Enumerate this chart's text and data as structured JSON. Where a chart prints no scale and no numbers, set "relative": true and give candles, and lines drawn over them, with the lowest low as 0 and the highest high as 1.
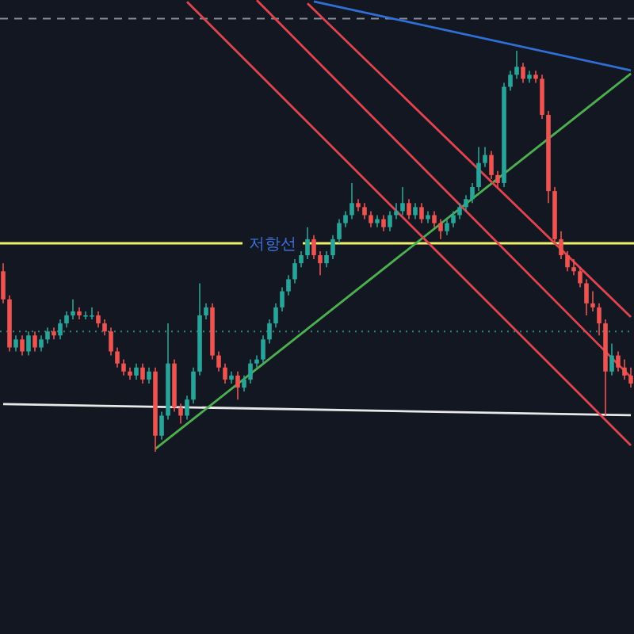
{
  "chart_data": {
    "type": "candlestick",
    "relative": true,
    "categories": [
      null,
      null,
      null,
      null,
      null,
      null,
      null,
      null,
      null,
      null,
      null,
      null,
      null,
      null,
      null,
      null,
      null,
      null,
      null,
      null,
      null,
      null,
      null,
      null,
      null,
      null,
      null,
      null,
      null,
      null,
      null,
      null,
      null,
      null,
      null,
      null,
      null,
      null,
      null,
      null,
      null,
      null,
      null,
      null,
      null,
      null,
      null,
      null,
      null,
      null,
      null,
      null,
      null,
      null,
      null,
      null,
      null,
      null,
      null,
      null,
      null,
      null,
      null,
      null,
      null,
      null,
      null,
      null,
      null,
      null,
      null,
      null,
      null,
      null,
      null,
      null,
      null,
      null,
      null,
      null,
      null,
      null,
      null,
      null,
      null,
      null,
      null,
      null,
      null,
      null,
      null,
      null,
      null,
      null,
      null,
      null,
      null,
      null,
      null,
      null
    ],
    "ohlc": [
      [
        0.45,
        0.47,
        0.37,
        0.38
      ],
      [
        0.38,
        0.39,
        0.25,
        0.26
      ],
      [
        0.26,
        0.29,
        0.25,
        0.28
      ],
      [
        0.28,
        0.29,
        0.24,
        0.25
      ],
      [
        0.25,
        0.3,
        0.24,
        0.29
      ],
      [
        0.29,
        0.3,
        0.25,
        0.26
      ],
      [
        0.26,
        0.29,
        0.25,
        0.28
      ],
      [
        0.28,
        0.31,
        0.27,
        0.3
      ],
      [
        0.3,
        0.31,
        0.28,
        0.29
      ],
      [
        0.29,
        0.33,
        0.28,
        0.32
      ],
      [
        0.32,
        0.35,
        0.31,
        0.34
      ],
      [
        0.34,
        0.38,
        0.33,
        0.35
      ],
      [
        0.35,
        0.36,
        0.33,
        0.34
      ],
      [
        0.34,
        0.35,
        0.33,
        0.34
      ],
      [
        0.34,
        0.36,
        0.33,
        0.34
      ],
      [
        0.34,
        0.35,
        0.31,
        0.32
      ],
      [
        0.32,
        0.33,
        0.29,
        0.3
      ],
      [
        0.3,
        0.31,
        0.24,
        0.25
      ],
      [
        0.25,
        0.26,
        0.21,
        0.22
      ],
      [
        0.22,
        0.23,
        0.19,
        0.2
      ],
      [
        0.2,
        0.21,
        0.18,
        0.19
      ],
      [
        0.19,
        0.22,
        0.18,
        0.21
      ],
      [
        0.21,
        0.22,
        0.17,
        0.18
      ],
      [
        0.18,
        0.21,
        0.17,
        0.2
      ],
      [
        0.2,
        0.21,
        0.0,
        0.04
      ],
      [
        0.04,
        0.1,
        0.03,
        0.09
      ],
      [
        0.09,
        0.32,
        0.08,
        0.22
      ],
      [
        0.22,
        0.23,
        0.1,
        0.11
      ],
      [
        0.11,
        0.12,
        0.07,
        0.09
      ],
      [
        0.09,
        0.14,
        0.08,
        0.13
      ],
      [
        0.13,
        0.21,
        0.12,
        0.2
      ],
      [
        0.2,
        0.42,
        0.19,
        0.34
      ],
      [
        0.34,
        0.37,
        0.33,
        0.36
      ],
      [
        0.36,
        0.37,
        0.23,
        0.24
      ],
      [
        0.24,
        0.25,
        0.2,
        0.21
      ],
      [
        0.21,
        0.22,
        0.17,
        0.18
      ],
      [
        0.18,
        0.2,
        0.17,
        0.19
      ],
      [
        0.19,
        0.2,
        0.13,
        0.16
      ],
      [
        0.16,
        0.19,
        0.15,
        0.18
      ],
      [
        0.18,
        0.23,
        0.17,
        0.22
      ],
      [
        0.22,
        0.24,
        0.21,
        0.23
      ],
      [
        0.23,
        0.29,
        0.22,
        0.28
      ],
      [
        0.28,
        0.33,
        0.27,
        0.32
      ],
      [
        0.32,
        0.37,
        0.31,
        0.36
      ],
      [
        0.36,
        0.41,
        0.35,
        0.4
      ],
      [
        0.4,
        0.44,
        0.39,
        0.43
      ],
      [
        0.43,
        0.48,
        0.42,
        0.47
      ],
      [
        0.47,
        0.5,
        0.46,
        0.49
      ],
      [
        0.49,
        0.56,
        0.48,
        0.53
      ],
      [
        0.53,
        0.54,
        0.48,
        0.49
      ],
      [
        0.49,
        0.5,
        0.44,
        0.47
      ],
      [
        0.47,
        0.5,
        0.46,
        0.49
      ],
      [
        0.49,
        0.54,
        0.48,
        0.53
      ],
      [
        0.53,
        0.58,
        0.52,
        0.57
      ],
      [
        0.57,
        0.6,
        0.56,
        0.59
      ],
      [
        0.59,
        0.67,
        0.58,
        0.62
      ],
      [
        0.62,
        0.63,
        0.6,
        0.61
      ],
      [
        0.61,
        0.62,
        0.58,
        0.59
      ],
      [
        0.59,
        0.6,
        0.56,
        0.57
      ],
      [
        0.57,
        0.59,
        0.56,
        0.58
      ],
      [
        0.58,
        0.59,
        0.55,
        0.56
      ],
      [
        0.56,
        0.6,
        0.55,
        0.59
      ],
      [
        0.59,
        0.62,
        0.58,
        0.6
      ],
      [
        0.6,
        0.66,
        0.59,
        0.62
      ],
      [
        0.62,
        0.63,
        0.58,
        0.59
      ],
      [
        0.59,
        0.62,
        0.58,
        0.61
      ],
      [
        0.61,
        0.62,
        0.57,
        0.58
      ],
      [
        0.58,
        0.6,
        0.57,
        0.59
      ],
      [
        0.59,
        0.6,
        0.56,
        0.57
      ],
      [
        0.57,
        0.58,
        0.53,
        0.55
      ],
      [
        0.55,
        0.58,
        0.54,
        0.57
      ],
      [
        0.57,
        0.6,
        0.56,
        0.59
      ],
      [
        0.59,
        0.62,
        0.58,
        0.61
      ],
      [
        0.61,
        0.64,
        0.6,
        0.63
      ],
      [
        0.63,
        0.67,
        0.62,
        0.66
      ],
      [
        0.66,
        0.76,
        0.65,
        0.72
      ],
      [
        0.72,
        0.76,
        0.71,
        0.74
      ],
      [
        0.74,
        0.75,
        0.68,
        0.69
      ],
      [
        0.69,
        0.7,
        0.66,
        0.67
      ],
      [
        0.67,
        0.92,
        0.66,
        0.91
      ],
      [
        0.91,
        0.95,
        0.9,
        0.94
      ],
      [
        0.94,
        1.0,
        0.93,
        0.96
      ],
      [
        0.96,
        0.97,
        0.92,
        0.93
      ],
      [
        0.93,
        0.95,
        0.92,
        0.94
      ],
      [
        0.94,
        0.95,
        0.92,
        0.93
      ],
      [
        0.93,
        0.94,
        0.83,
        0.84
      ],
      [
        0.84,
        0.85,
        0.62,
        0.65
      ],
      [
        0.65,
        0.66,
        0.52,
        0.53
      ],
      [
        0.53,
        0.55,
        0.48,
        0.49
      ],
      [
        0.49,
        0.5,
        0.45,
        0.46
      ],
      [
        0.46,
        0.48,
        0.44,
        0.45
      ],
      [
        0.45,
        0.46,
        0.41,
        0.42
      ],
      [
        0.42,
        0.43,
        0.34,
        0.37
      ],
      [
        0.37,
        0.4,
        0.35,
        0.36
      ],
      [
        0.36,
        0.37,
        0.29,
        0.32
      ],
      [
        0.32,
        0.33,
        0.09,
        0.2
      ],
      [
        0.2,
        0.27,
        0.19,
        0.24
      ],
      [
        0.24,
        0.25,
        0.2,
        0.21
      ],
      [
        0.21,
        0.23,
        0.18,
        0.19
      ],
      [
        0.19,
        0.21,
        0.16,
        0.17
      ]
    ],
    "series": [
      {
        "type": "line",
        "color": "#e8e8e8",
        "values": [
          0.119,
          null,
          null,
          null,
          null,
          null,
          null,
          null,
          null,
          null,
          null,
          null,
          null,
          null,
          null,
          null,
          null,
          null,
          null,
          null,
          null,
          null,
          null,
          null,
          null,
          null,
          null,
          null,
          null,
          null,
          null,
          null,
          null,
          null,
          null,
          null,
          null,
          null,
          null,
          null,
          null,
          null,
          null,
          null,
          null,
          null,
          null,
          null,
          null,
          null,
          null,
          null,
          null,
          null,
          null,
          null,
          null,
          null,
          null,
          null,
          null,
          null,
          null,
          null,
          null,
          null,
          null,
          null,
          null,
          null,
          null,
          null,
          null,
          null,
          null,
          null,
          null,
          null,
          null,
          null,
          null,
          null,
          null,
          null,
          null,
          null,
          null,
          null,
          null,
          null,
          null,
          null,
          null,
          null,
          null,
          null,
          null,
          null,
          null,
          0.091
        ]
      },
      {
        "type": "line",
        "color": "#4caf50",
        "values": [
          null,
          null,
          null,
          null,
          null,
          null,
          null,
          null,
          null,
          null,
          null,
          null,
          null,
          null,
          null,
          null,
          null,
          null,
          null,
          null,
          null,
          null,
          null,
          null,
          0.007,
          null,
          null,
          null,
          null,
          null,
          null,
          null,
          null,
          null,
          null,
          null,
          null,
          null,
          null,
          null,
          null,
          null,
          null,
          null,
          null,
          null,
          null,
          null,
          null,
          null,
          null,
          null,
          null,
          null,
          null,
          null,
          null,
          null,
          null,
          null,
          null,
          null,
          null,
          null,
          null,
          null,
          null,
          null,
          null,
          null,
          null,
          null,
          null,
          null,
          null,
          null,
          null,
          null,
          null,
          null,
          null,
          null,
          null,
          null,
          null,
          null,
          null,
          null,
          null,
          null,
          null,
          null,
          null,
          null,
          null,
          null,
          null,
          null,
          null,
          0.943
        ]
      },
      {
        "type": "line",
        "color": "#2f6fd6",
        "values": [
          null,
          null,
          null,
          null,
          null,
          null,
          null,
          null,
          null,
          null,
          null,
          null,
          null,
          null,
          null,
          null,
          null,
          null,
          null,
          null,
          null,
          null,
          null,
          null,
          null,
          null,
          null,
          null,
          null,
          null,
          null,
          null,
          null,
          null,
          null,
          null,
          null,
          null,
          null,
          null,
          null,
          null,
          null,
          null,
          null,
          null,
          null,
          null,
          null,
          1.123,
          null,
          null,
          null,
          null,
          null,
          null,
          null,
          null,
          null,
          null,
          null,
          null,
          null,
          null,
          null,
          null,
          null,
          null,
          null,
          null,
          null,
          null,
          null,
          null,
          null,
          null,
          null,
          null,
          null,
          null,
          null,
          null,
          null,
          null,
          null,
          null,
          null,
          null,
          null,
          null,
          null,
          null,
          null,
          null,
          null,
          null,
          null,
          null,
          null,
          0.951
        ]
      },
      {
        "type": "line",
        "color": "#e0454f",
        "values": [
          null,
          null,
          null,
          null,
          null,
          null,
          null,
          null,
          null,
          null,
          null,
          null,
          null,
          null,
          null,
          null,
          null,
          null,
          null,
          null,
          null,
          null,
          null,
          null,
          null,
          null,
          null,
          null,
          null,
          1.122,
          null,
          null,
          null,
          null,
          null,
          null,
          null,
          null,
          null,
          null,
          null,
          null,
          null,
          null,
          null,
          null,
          null,
          null,
          null,
          null,
          null,
          null,
          null,
          null,
          null,
          null,
          null,
          null,
          null,
          null,
          null,
          null,
          null,
          null,
          null,
          null,
          null,
          null,
          null,
          null,
          null,
          null,
          null,
          null,
          null,
          null,
          null,
          null,
          null,
          null,
          null,
          null,
          null,
          null,
          null,
          null,
          null,
          null,
          null,
          null,
          null,
          null,
          null,
          null,
          null,
          null,
          null,
          null,
          null,
          0.016
        ]
      },
      {
        "type": "line",
        "color": "#e0454f",
        "values": [
          null,
          null,
          null,
          null,
          null,
          null,
          null,
          null,
          null,
          null,
          null,
          null,
          null,
          null,
          null,
          null,
          null,
          null,
          null,
          null,
          null,
          null,
          null,
          null,
          null,
          null,
          null,
          null,
          null,
          null,
          null,
          null,
          null,
          null,
          null,
          null,
          null,
          null,
          null,
          null,
          1.126,
          null,
          null,
          null,
          null,
          null,
          null,
          null,
          null,
          null,
          null,
          null,
          null,
          null,
          null,
          null,
          null,
          null,
          null,
          null,
          null,
          null,
          null,
          null,
          null,
          null,
          null,
          null,
          null,
          null,
          null,
          null,
          null,
          null,
          null,
          null,
          null,
          null,
          null,
          null,
          null,
          null,
          null,
          null,
          null,
          null,
          null,
          null,
          null,
          null,
          null,
          null,
          null,
          null,
          null,
          null,
          null,
          null,
          null,
          0.186
        ]
      },
      {
        "type": "line",
        "color": "#e0454f",
        "values": [
          null,
          null,
          null,
          null,
          null,
          null,
          null,
          null,
          null,
          null,
          null,
          null,
          null,
          null,
          null,
          null,
          null,
          null,
          null,
          null,
          null,
          null,
          null,
          null,
          null,
          null,
          null,
          null,
          null,
          null,
          null,
          null,
          null,
          null,
          null,
          null,
          null,
          null,
          null,
          null,
          null,
          null,
          null,
          null,
          null,
          null,
          null,
          null,
          1.118,
          null,
          null,
          null,
          null,
          null,
          null,
          null,
          null,
          null,
          null,
          null,
          null,
          null,
          null,
          null,
          null,
          null,
          null,
          null,
          null,
          null,
          null,
          null,
          null,
          null,
          null,
          null,
          null,
          null,
          null,
          null,
          null,
          null,
          null,
          null,
          null,
          null,
          null,
          null,
          null,
          null,
          null,
          null,
          null,
          null,
          null,
          null,
          null,
          null,
          null,
          0.336
        ]
      }
    ],
    "ref_lines": [
      {
        "axis": "y",
        "value": 0.52,
        "label": "저항선",
        "color": "#f2f26a"
      },
      {
        "axis": "y",
        "value": 1.08,
        "color": "#8a8e99",
        "line_style": "dashed"
      },
      {
        "axis": "y",
        "value": 0.3,
        "color": "#2a8a80",
        "line_style": "dotted"
      }
    ]
  }
}
